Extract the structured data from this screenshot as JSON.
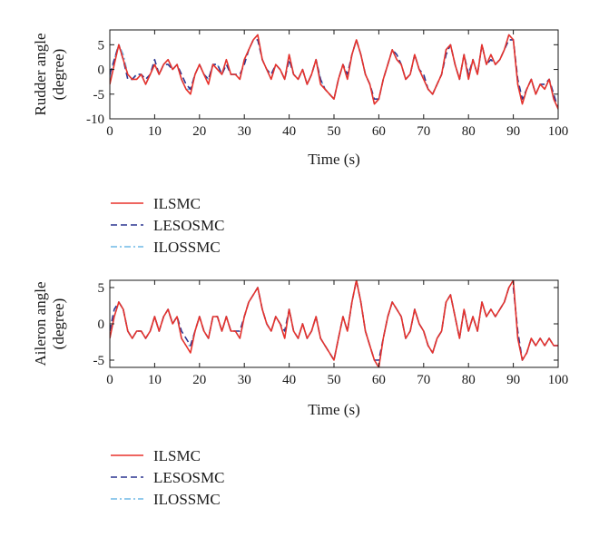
{
  "colors": {
    "ILSMC": "#e8322b",
    "LESOSMC": "#2b3590",
    "ILOSSMC": "#6fb8e6"
  },
  "chart_data": [
    {
      "type": "line",
      "title": "",
      "xlabel": "Time (s)",
      "ylabel_lines": [
        "Rudder angle",
        "(degree)"
      ],
      "xlim": [
        0,
        100
      ],
      "ylim": [
        -10,
        8
      ],
      "xticks": [
        0,
        10,
        20,
        30,
        40,
        50,
        60,
        70,
        80,
        90,
        100
      ],
      "yticks": [
        -10,
        -5,
        0,
        5
      ],
      "grid": false,
      "legend": [
        "ILSMC",
        "LESOSMC",
        "ILOSSMC"
      ],
      "legend_position": "below",
      "x": [
        0,
        1,
        2,
        3,
        4,
        5,
        6,
        7,
        8,
        9,
        10,
        11,
        12,
        13,
        14,
        15,
        16,
        17,
        18,
        19,
        20,
        21,
        22,
        23,
        24,
        25,
        26,
        27,
        28,
        29,
        30,
        31,
        32,
        33,
        34,
        35,
        36,
        37,
        38,
        39,
        40,
        41,
        42,
        43,
        44,
        45,
        46,
        47,
        48,
        49,
        50,
        51,
        52,
        53,
        54,
        55,
        56,
        57,
        58,
        59,
        60,
        61,
        62,
        63,
        64,
        65,
        66,
        67,
        68,
        69,
        70,
        71,
        72,
        73,
        74,
        75,
        76,
        77,
        78,
        79,
        80,
        81,
        82,
        83,
        84,
        85,
        86,
        87,
        88,
        89,
        90,
        91,
        92,
        93,
        94,
        95,
        96,
        97,
        98,
        99,
        100
      ],
      "series": [
        {
          "name": "ILSMC",
          "values": [
            -3,
            1,
            5,
            2,
            -1,
            -2,
            -2,
            -1,
            -3,
            -1,
            1,
            -1,
            1,
            2,
            0,
            1,
            -2,
            -4,
            -5,
            -1,
            1,
            -1,
            -3,
            1,
            0,
            -1,
            2,
            -1,
            -1,
            -2,
            2,
            4,
            6,
            7,
            2,
            0,
            -2,
            1,
            0,
            -2,
            3,
            -1,
            -2,
            0,
            -3,
            -1,
            2,
            -3,
            -4,
            -5,
            -6,
            -2,
            1,
            -2,
            3,
            6,
            3,
            -1,
            -3,
            -7,
            -6,
            -2,
            1,
            4,
            2,
            1,
            -2,
            -1,
            3,
            0,
            -2,
            -4,
            -5,
            -3,
            -1,
            4,
            5,
            1,
            -2,
            3,
            -2,
            2,
            -1,
            5,
            1,
            3,
            1,
            2,
            4,
            7,
            6,
            -3,
            -7,
            -4,
            -2,
            -5,
            -3,
            -4,
            -2,
            -6,
            -8
          ]
        },
        {
          "name": "LESOSMC",
          "values": [
            -1,
            2,
            5,
            2,
            -2,
            -2,
            -1,
            -1,
            -2,
            -1,
            2,
            -1,
            1,
            1,
            0,
            1,
            -1,
            -3,
            -4,
            -1,
            1,
            -1,
            -2,
            1,
            1,
            -1,
            1,
            -1,
            -1,
            -1,
            1,
            4,
            6,
            6,
            2,
            0,
            -1,
            1,
            0,
            -2,
            2,
            -1,
            -2,
            0,
            -3,
            -1,
            2,
            -2,
            -4,
            -5,
            -6,
            -2,
            1,
            -1,
            3,
            6,
            3,
            -1,
            -3,
            -6,
            -6,
            -2,
            1,
            4,
            3,
            1,
            -2,
            -1,
            3,
            0,
            -1,
            -4,
            -5,
            -3,
            -1,
            3,
            5,
            1,
            -2,
            3,
            -1,
            2,
            -1,
            5,
            1,
            2,
            1,
            2,
            4,
            6,
            6,
            -2,
            -6,
            -4,
            -2,
            -5,
            -3,
            -3,
            -2,
            -5,
            -8
          ]
        },
        {
          "name": "ILOSSMC",
          "values": [
            -2,
            2,
            5,
            3,
            -1,
            -2,
            -1,
            -1,
            -3,
            -1,
            1,
            -1,
            1,
            2,
            0,
            1,
            -2,
            -4,
            -4,
            -1,
            1,
            -1,
            -2,
            1,
            1,
            -1,
            2,
            -1,
            -1,
            -2,
            2,
            4,
            6,
            7,
            2,
            0,
            -2,
            1,
            0,
            -2,
            3,
            -1,
            -2,
            0,
            -3,
            -1,
            2,
            -2,
            -4,
            -5,
            -6,
            -2,
            1,
            -2,
            3,
            6,
            3,
            -1,
            -3,
            -7,
            -6,
            -2,
            1,
            4,
            2,
            1,
            -2,
            -1,
            3,
            0,
            -2,
            -4,
            -5,
            -3,
            -1,
            4,
            5,
            1,
            -2,
            3,
            -2,
            2,
            -1,
            5,
            1,
            3,
            1,
            2,
            4,
            7,
            6,
            -3,
            -7,
            -4,
            -2,
            -5,
            -3,
            -4,
            -2,
            -6,
            -8
          ]
        }
      ]
    },
    {
      "type": "line",
      "title": "",
      "xlabel": "Time (s)",
      "ylabel_lines": [
        "Aileron angle",
        "(degree)"
      ],
      "xlim": [
        0,
        100
      ],
      "ylim": [
        -6,
        6
      ],
      "xticks": [
        0,
        10,
        20,
        30,
        40,
        50,
        60,
        70,
        80,
        90,
        100
      ],
      "yticks": [
        -5,
        0,
        5
      ],
      "grid": false,
      "legend": [
        "ILSMC",
        "LESOSMC",
        "ILOSSMC"
      ],
      "legend_position": "below",
      "x": [
        0,
        1,
        2,
        3,
        4,
        5,
        6,
        7,
        8,
        9,
        10,
        11,
        12,
        13,
        14,
        15,
        16,
        17,
        18,
        19,
        20,
        21,
        22,
        23,
        24,
        25,
        26,
        27,
        28,
        29,
        30,
        31,
        32,
        33,
        34,
        35,
        36,
        37,
        38,
        39,
        40,
        41,
        42,
        43,
        44,
        45,
        46,
        47,
        48,
        49,
        50,
        51,
        52,
        53,
        54,
        55,
        56,
        57,
        58,
        59,
        60,
        61,
        62,
        63,
        64,
        65,
        66,
        67,
        68,
        69,
        70,
        71,
        72,
        73,
        74,
        75,
        76,
        77,
        78,
        79,
        80,
        81,
        82,
        83,
        84,
        85,
        86,
        87,
        88,
        89,
        90,
        91,
        92,
        93,
        94,
        95,
        96,
        97,
        98,
        99,
        100
      ],
      "series": [
        {
          "name": "ILSMC",
          "values": [
            -2,
            1,
            3,
            2,
            -1,
            -2,
            -1,
            -1,
            -2,
            -1,
            1,
            -1,
            1,
            2,
            0,
            1,
            -2,
            -3,
            -4,
            -1,
            1,
            -1,
            -2,
            1,
            1,
            -1,
            1,
            -1,
            -1,
            -2,
            1,
            3,
            4,
            5,
            2,
            0,
            -1,
            1,
            0,
            -2,
            2,
            -1,
            -2,
            0,
            -2,
            -1,
            1,
            -2,
            -3,
            -4,
            -5,
            -2,
            1,
            -1,
            3,
            6,
            3,
            -1,
            -3,
            -5,
            -6,
            -2,
            1,
            3,
            2,
            1,
            -2,
            -1,
            2,
            0,
            -1,
            -3,
            -4,
            -2,
            -1,
            3,
            4,
            1,
            -2,
            2,
            -1,
            1,
            -1,
            3,
            1,
            2,
            1,
            2,
            3,
            5,
            6,
            -2,
            -5,
            -4,
            -2,
            -3,
            -2,
            -3,
            -2,
            -3,
            -3
          ]
        },
        {
          "name": "LESOSMC",
          "values": [
            -1,
            2,
            3,
            2,
            -1,
            -2,
            -1,
            -1,
            -2,
            -1,
            1,
            -1,
            1,
            2,
            0,
            1,
            -1,
            -2,
            -3,
            -1,
            1,
            -1,
            -2,
            1,
            1,
            -1,
            1,
            -1,
            -1,
            -1,
            1,
            3,
            4,
            5,
            2,
            0,
            -1,
            1,
            0,
            -1,
            2,
            -1,
            -2,
            0,
            -2,
            -1,
            1,
            -2,
            -3,
            -4,
            -5,
            -2,
            1,
            -1,
            3,
            6,
            3,
            -1,
            -3,
            -5,
            -5,
            -2,
            1,
            3,
            2,
            1,
            -2,
            -1,
            2,
            0,
            -1,
            -3,
            -4,
            -2,
            -1,
            3,
            4,
            1,
            -2,
            2,
            -1,
            1,
            -1,
            3,
            1,
            2,
            1,
            2,
            3,
            5,
            5,
            -1,
            -5,
            -4,
            -2,
            -3,
            -2,
            -3,
            -2,
            -3,
            -3
          ]
        },
        {
          "name": "ILOSSMC",
          "values": [
            -2,
            1,
            3,
            2,
            -1,
            -2,
            -1,
            -1,
            -2,
            -1,
            1,
            -1,
            1,
            2,
            0,
            1,
            -2,
            -3,
            -3,
            -1,
            1,
            -1,
            -2,
            1,
            1,
            -1,
            1,
            -1,
            -1,
            -2,
            1,
            3,
            4,
            5,
            2,
            0,
            -1,
            1,
            0,
            -2,
            2,
            -1,
            -2,
            0,
            -2,
            -1,
            1,
            -2,
            -3,
            -4,
            -5,
            -2,
            1,
            -1,
            3,
            6,
            3,
            -1,
            -3,
            -5,
            -6,
            -2,
            1,
            3,
            2,
            1,
            -2,
            -1,
            2,
            0,
            -1,
            -3,
            -4,
            -2,
            -1,
            3,
            4,
            1,
            -2,
            2,
            -1,
            1,
            -1,
            3,
            1,
            2,
            1,
            2,
            3,
            5,
            6,
            -2,
            -5,
            -4,
            -2,
            -3,
            -2,
            -3,
            -2,
            -3,
            -3
          ]
        }
      ]
    }
  ]
}
